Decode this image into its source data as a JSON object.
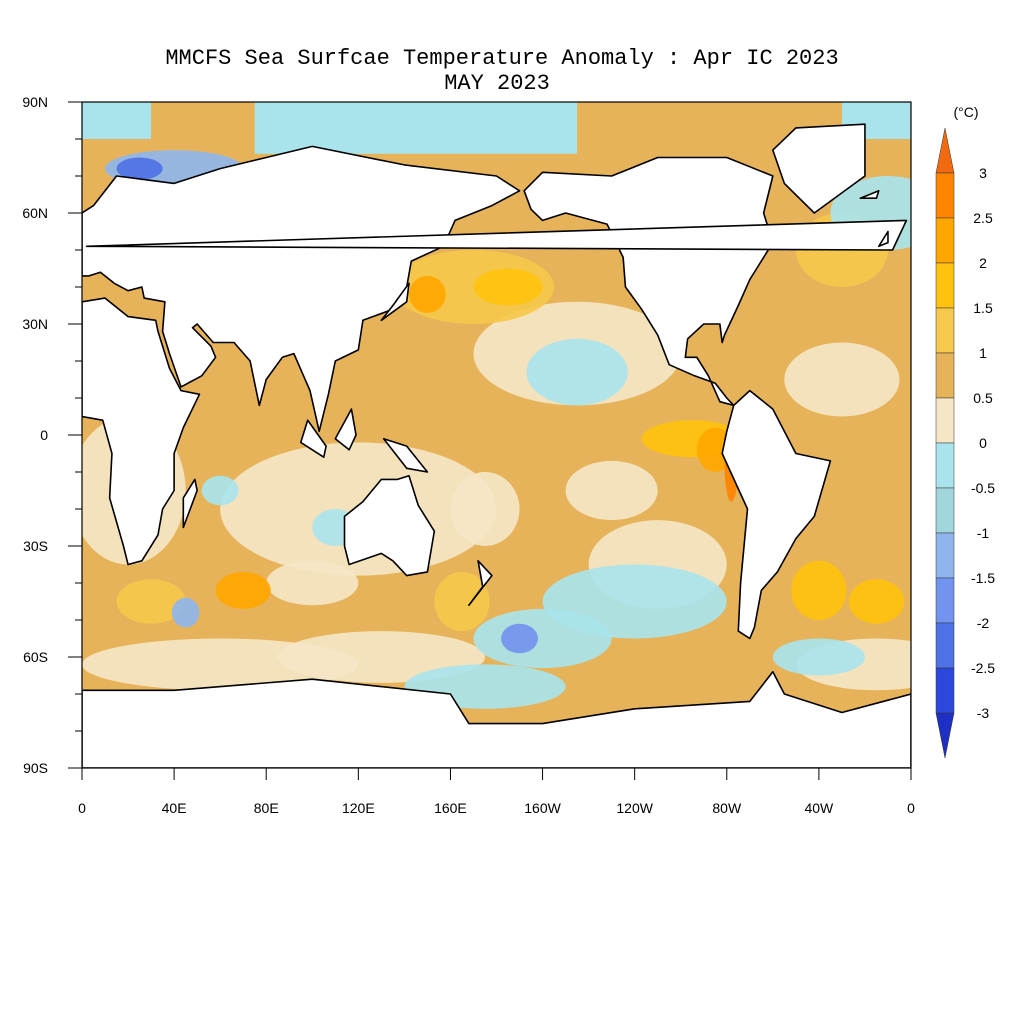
{
  "map": {
    "title": "MMCFS Sea Surfcae Temperature Anomaly : Apr IC 2023",
    "subtitle": "MAY 2023",
    "xticks": [
      "0",
      "40E",
      "80E",
      "120E",
      "160E",
      "160W",
      "120W",
      "80W",
      "40W",
      "0"
    ],
    "yticks": [
      "90N",
      "60N",
      "30N",
      "0",
      "30S",
      "60S",
      "90S"
    ]
  },
  "colorbar": {
    "unit": "(°C)",
    "levels": [
      3,
      2.5,
      2,
      1.5,
      1,
      0.5,
      0,
      -0.5,
      -1,
      -1.5,
      -2,
      -2.5,
      -3
    ],
    "colors": [
      "#f26a0f",
      "#ff8400",
      "#ffa700",
      "#ffc20e",
      "#f6c84b",
      "#e6b35a",
      "#f5e6c6",
      "#a9e4ec",
      "#a2d6de",
      "#8fb6ec",
      "#7394ee",
      "#4f72e6",
      "#2c48dc",
      "#1e2fc4"
    ]
  }
}
